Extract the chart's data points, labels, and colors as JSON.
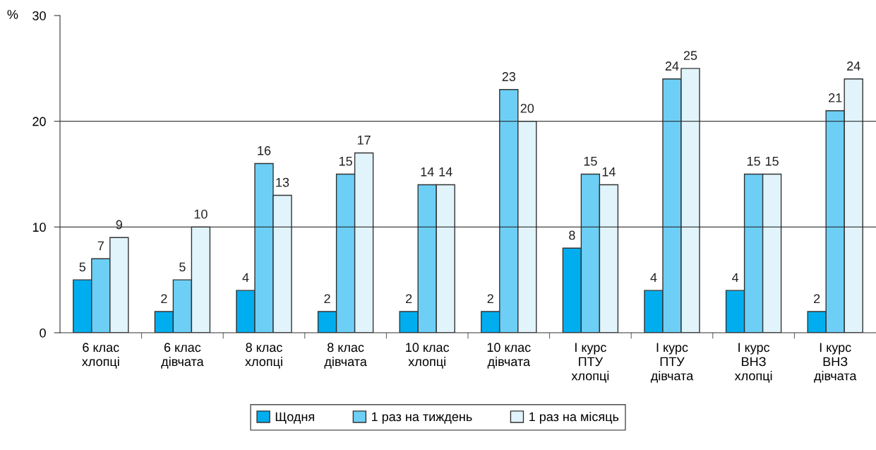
{
  "chart_data": {
    "type": "bar",
    "ylabel": "%",
    "categories": [
      "6 клас\nхлопці",
      "6 клас\nдівчата",
      "8 клас\nхлопці",
      "8 клас\nдівчата",
      "10 клас\nхлопці",
      "10 клас\nдівчата",
      "І курс\nПТУ\nхлопці",
      "І курс\nПТУ\nдівчата",
      "І курс\nВНЗ\nхлопці",
      "І курс\nВНЗ\nдівчата"
    ],
    "series": [
      {
        "name": "Щодня",
        "color": "#00aeef",
        "values": [
          5,
          2,
          4,
          2,
          2,
          2,
          8,
          4,
          4,
          2
        ]
      },
      {
        "name": "1 раз на тиждень",
        "color": "#6dcff6",
        "values": [
          7,
          5,
          16,
          15,
          14,
          23,
          15,
          24,
          15,
          21
        ]
      },
      {
        "name": "1 раз на місяць",
        "color": "#e1f4fc",
        "values": [
          9,
          10,
          13,
          17,
          14,
          20,
          14,
          25,
          15,
          24
        ]
      }
    ],
    "ylim": [
      0,
      30
    ],
    "yticks": [
      0,
      10,
      20,
      30
    ],
    "grid": "y",
    "legend": "bottom",
    "data_labels": true
  }
}
